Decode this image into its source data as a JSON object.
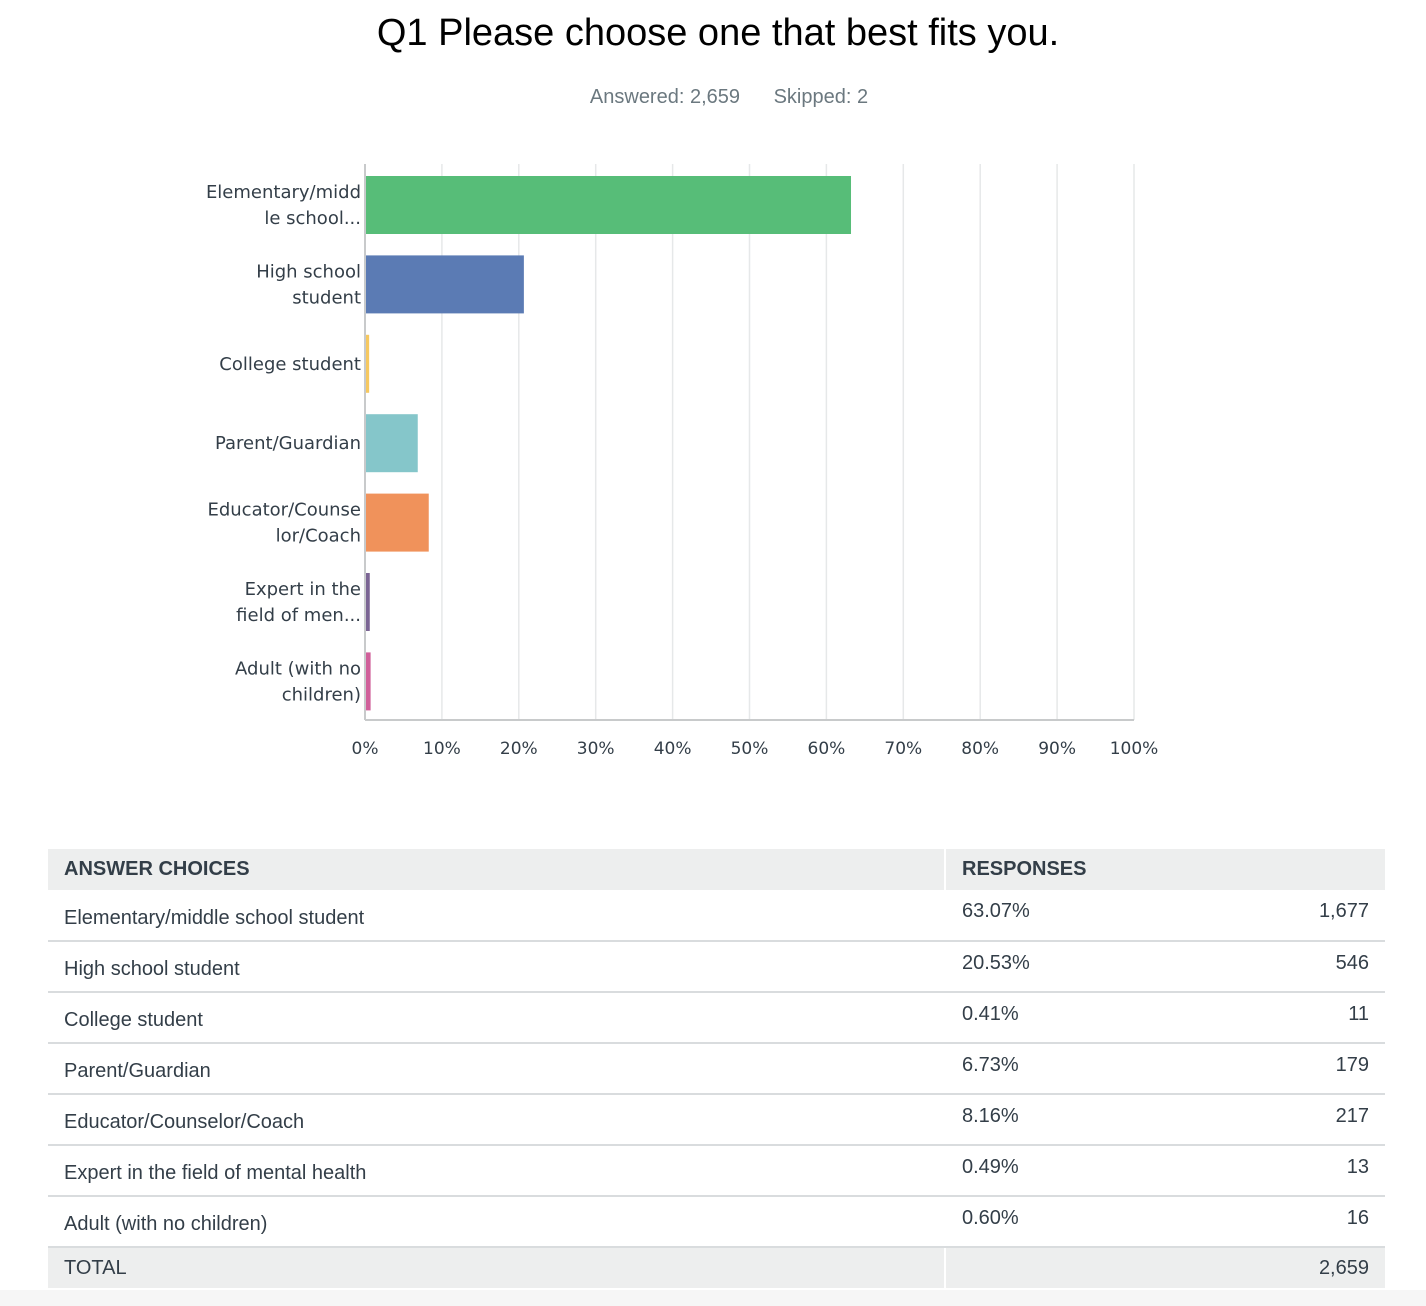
{
  "question": {
    "title": "Q1 Please choose one that best fits you.",
    "answered": "Answered: 2,659",
    "skipped": "Skipped: 2"
  },
  "chart_data": {
    "type": "bar",
    "orientation": "horizontal",
    "categories": [
      "Elementary/middle school student",
      "High school student",
      "College student",
      "Parent/Guardian",
      "Educator/Counselor/Coach",
      "Expert in the field of mental health",
      "Adult (with no children)"
    ],
    "category_labels": [
      [
        "Elementary/midd",
        "le school..."
      ],
      [
        "High school",
        "student"
      ],
      [
        "College student"
      ],
      [
        "Parent/Guardian"
      ],
      [
        "Educator/Counse",
        "lor/Coach"
      ],
      [
        "Expert in the",
        "field of men..."
      ],
      [
        "Adult (with no",
        "children)"
      ]
    ],
    "values": [
      63.07,
      20.53,
      0.41,
      6.73,
      8.16,
      0.49,
      0.6
    ],
    "colors": [
      "#57bd78",
      "#5b7bb4",
      "#f6c85f",
      "#85c6ca",
      "#f0925b",
      "#7b6594",
      "#d0609a"
    ],
    "xlim": [
      0,
      100
    ],
    "xticks": [
      "0%",
      "10%",
      "20%",
      "30%",
      "40%",
      "50%",
      "60%",
      "70%",
      "80%",
      "90%",
      "100%"
    ],
    "grid": true,
    "legend": "none"
  },
  "table": {
    "header_choices": "ANSWER CHOICES",
    "header_responses": "RESPONSES",
    "rows": [
      {
        "choice": "Elementary/middle school student",
        "percent": "63.07%",
        "count": "1,677"
      },
      {
        "choice": "High school student",
        "percent": "20.53%",
        "count": "546"
      },
      {
        "choice": "College student",
        "percent": "0.41%",
        "count": "11"
      },
      {
        "choice": "Parent/Guardian",
        "percent": "6.73%",
        "count": "179"
      },
      {
        "choice": "Educator/Counselor/Coach",
        "percent": "8.16%",
        "count": "217"
      },
      {
        "choice": "Expert in the field of mental health",
        "percent": "0.49%",
        "count": "13"
      },
      {
        "choice": "Adult (with no children)",
        "percent": "0.60%",
        "count": "16"
      }
    ],
    "total_label": "TOTAL",
    "total_count": "2,659"
  }
}
